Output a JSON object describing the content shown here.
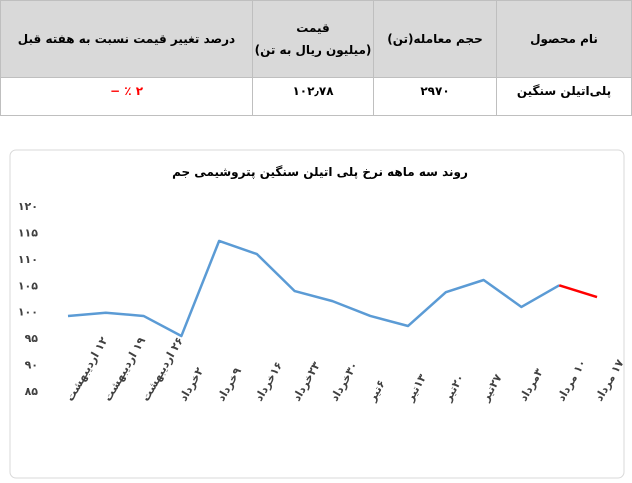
{
  "table": {
    "header": [
      "نام محصول",
      "حجم معامله(تن)",
      "قیمت\n(میلیون ریال به تن)",
      "درصد تغییر قیمت نسبت به هفته قبل"
    ],
    "rows": [
      [
        "پلی‌اتیلن سنگین",
        "۲۹۷۰",
        "۱۰۲٫۷۸",
        "۲ ٪ −"
      ]
    ]
  },
  "chart_data": {
    "type": "line",
    "title": "روند سه ماهه نرخ پلی اتیلن سنگین پتروشیمی جم",
    "categories": [
      "۱۲ اردیبهشت",
      "۱۹ اردیبهشت",
      "۲۶ اردیبهشت",
      "۲خرداد",
      "۹خرداد",
      "۱۶خرداد",
      "۲۳خرداد",
      "۳۰خرداد",
      "۶تیر",
      "۱۳تیر",
      "۲۰تیر",
      "۲۷تیر",
      "۳مرداد",
      "۱۰ مرداد",
      "۱۷ مرداد"
    ],
    "series": [
      {
        "color": "#5b9bd5",
        "last_segment_color": "#ff0000",
        "values": [
          99.2,
          99.8,
          99.2,
          95.4,
          113.4,
          110.9,
          103.9,
          102.0,
          99.2,
          97.3,
          103.7,
          106.0,
          100.9,
          105.0,
          102.78
        ]
      }
    ],
    "ylim": [
      85,
      120
    ],
    "yticks": [
      {
        "value": 85,
        "label": "۸۵"
      },
      {
        "value": 90,
        "label": "۹۰"
      },
      {
        "value": 95,
        "label": "۹۵"
      },
      {
        "value": 100,
        "label": "۱۰۰"
      },
      {
        "value": 105,
        "label": "۱۰۵"
      },
      {
        "value": 110,
        "label": "۱۱۰"
      },
      {
        "value": 115,
        "label": "۱۱۵"
      },
      {
        "value": 120,
        "label": "۱۲۰"
      }
    ],
    "grid": false
  }
}
